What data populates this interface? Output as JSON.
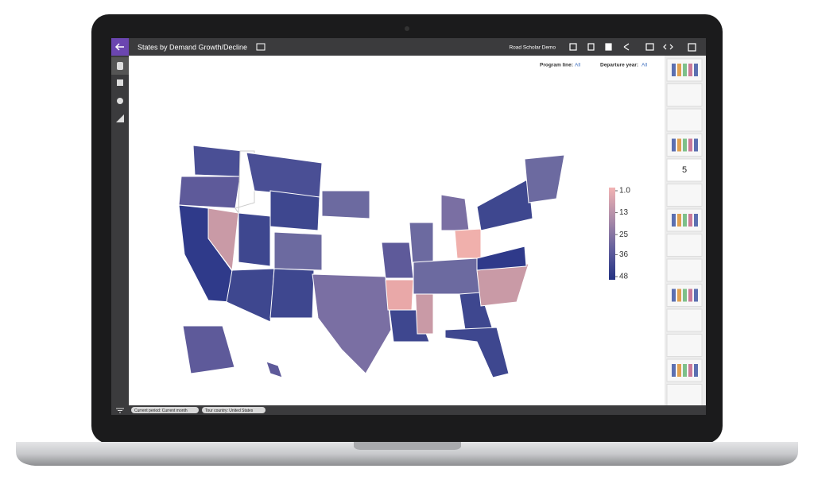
{
  "header": {
    "title": "States by Demand Growth/Decline",
    "account": "Road Scholar Demo"
  },
  "filters": [
    {
      "label": "Program line:",
      "value": "All"
    },
    {
      "label": "Departure year:",
      "value": "All"
    }
  ],
  "legend": {
    "ticks": [
      {
        "value": 1,
        "label": "1.0"
      },
      13,
      25,
      36,
      48
    ]
  },
  "thumbnails": {
    "active_label": "5"
  },
  "chips": [
    "Current period: Current month",
    "Tour country: United States"
  ]
}
